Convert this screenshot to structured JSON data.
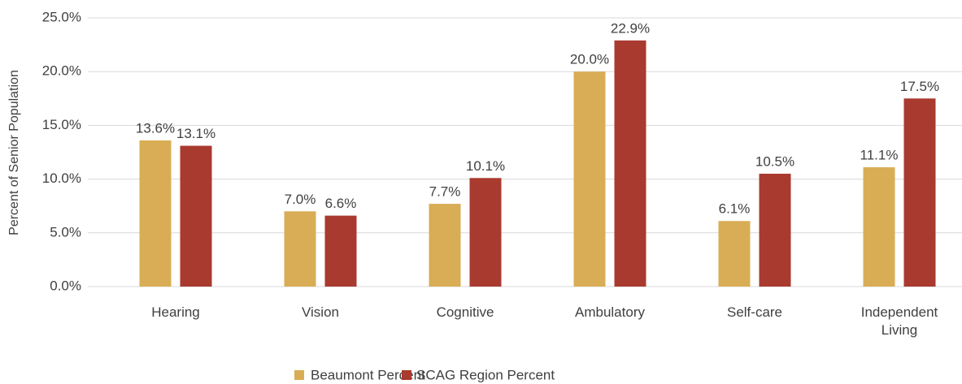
{
  "chart_data": {
    "type": "bar",
    "y_axis_label": "Percent of Senior Population",
    "categories": [
      "Hearing",
      "Vision",
      "Cognitive",
      "Ambulatory",
      "Self-care",
      "Independent Living"
    ],
    "series": [
      {
        "name": "Beaumont Percent",
        "color": "#d9ad55",
        "values": [
          13.6,
          7.0,
          7.7,
          20.0,
          6.1,
          11.1
        ],
        "value_labels": [
          "13.6%",
          "7.0%",
          "7.7%",
          "20.0%",
          "6.1%",
          "11.1%"
        ]
      },
      {
        "name": "SCAG Region Percent",
        "color": "#a93a2f",
        "values": [
          13.1,
          6.6,
          10.1,
          22.9,
          10.5,
          17.5
        ],
        "value_labels": [
          "13.1%",
          "6.6%",
          "10.1%",
          "22.9%",
          "10.5%",
          "17.5%"
        ]
      }
    ],
    "ylim": [
      0,
      25
    ],
    "yticks": [
      {
        "value": 0,
        "label": "0.0%"
      },
      {
        "value": 5,
        "label": "5.0%"
      },
      {
        "value": 10,
        "label": "10.0%"
      },
      {
        "value": 15,
        "label": "15.0%"
      },
      {
        "value": 20,
        "label": "20.0%"
      },
      {
        "value": 25,
        "label": "25.0%"
      }
    ],
    "grid": true,
    "legend": "bottom"
  }
}
